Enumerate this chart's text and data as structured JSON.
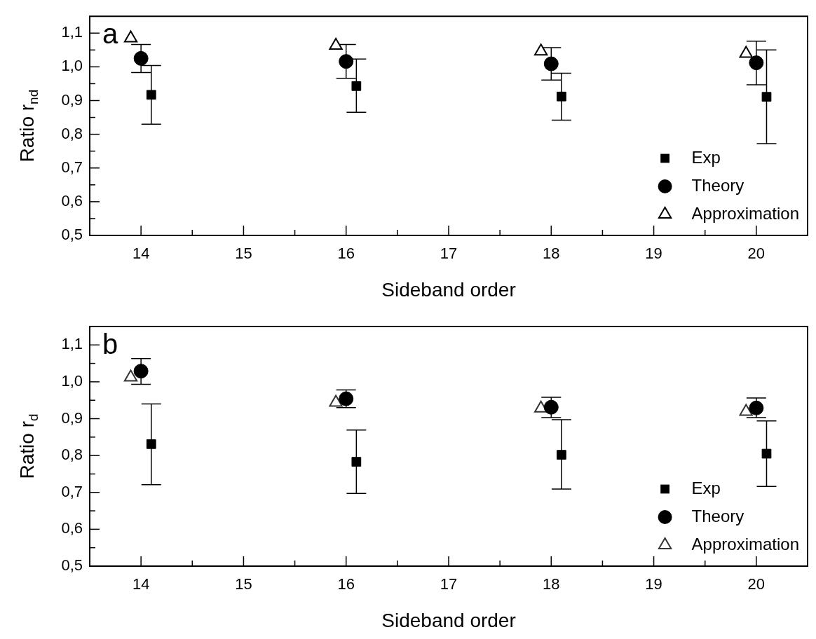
{
  "chart_data": [
    {
      "type": "scatter",
      "xlabel": "Sideband order",
      "ylabel": "Ratio r$_{nd}$",
      "annotations": [
        "a"
      ],
      "xlim": [
        13.5,
        20.5
      ],
      "xticks": [
        14,
        {
          "value": 14.5,
          "label": null
        },
        15,
        {
          "value": 15.5,
          "label": null
        },
        16,
        {
          "value": 16.5,
          "label": null
        },
        17,
        {
          "value": 17.5,
          "label": null
        },
        18,
        {
          "value": 18.5,
          "label": null
        },
        19,
        {
          "value": 19.5,
          "label": null
        },
        20
      ],
      "ylim": [
        0.5,
        1.15
      ],
      "yticks": [
        {
          "value": 0.5,
          "label": "0,5"
        },
        {
          "value": 0.55,
          "label": null
        },
        {
          "value": 0.6,
          "label": "0,6"
        },
        {
          "value": 0.65,
          "label": null
        },
        {
          "value": 0.7,
          "label": "0,7"
        },
        {
          "value": 0.75,
          "label": null
        },
        {
          "value": 0.8,
          "label": "0,8"
        },
        {
          "value": 0.85,
          "label": null
        },
        {
          "value": 0.9,
          "label": "0,9"
        },
        {
          "value": 0.95,
          "label": null
        },
        {
          "value": 1.0,
          "label": "1,0"
        },
        {
          "value": 1.05,
          "label": null
        },
        {
          "value": 1.1,
          "label": "1,1"
        }
      ],
      "legend": "bottom right",
      "grid": false,
      "series": [
        {
          "name": "Exp",
          "color": "#000000",
          "marker": "square",
          "x": [
            14.1,
            16.1,
            18.1,
            20.1
          ],
          "values": [
            0.917,
            0.943,
            0.912,
            0.911
          ],
          "errors": [
            [
              0.83,
              1.004
            ],
            [
              0.865,
              1.023
            ],
            [
              0.842,
              0.981
            ],
            [
              0.772,
              1.05
            ]
          ]
        },
        {
          "name": "Theory",
          "color": "#000000",
          "marker": "circle",
          "x": [
            14,
            16,
            18,
            20
          ],
          "values": [
            1.025,
            1.016,
            1.009,
            1.012
          ],
          "errors": [
            [
              0.983,
              1.066
            ],
            [
              0.966,
              1.066
            ],
            [
              0.961,
              1.057
            ],
            [
              0.947,
              1.076
            ]
          ]
        },
        {
          "name": "Approximation",
          "color": "#000000",
          "marker": "triangle",
          "x": [
            13.9,
            15.9,
            17.9,
            19.9
          ],
          "values": [
            1.085,
            1.063,
            1.046,
            1.039
          ]
        }
      ]
    },
    {
      "type": "scatter",
      "xlabel": "Sideband order",
      "ylabel": "Ratio r$_{d}$",
      "annotations": [
        "b"
      ],
      "xlim": [
        13.5,
        20.5
      ],
      "xticks": [
        14,
        {
          "value": 14.5,
          "label": null
        },
        15,
        {
          "value": 15.5,
          "label": null
        },
        16,
        {
          "value": 16.5,
          "label": null
        },
        17,
        {
          "value": 17.5,
          "label": null
        },
        18,
        {
          "value": 18.5,
          "label": null
        },
        19,
        {
          "value": 19.5,
          "label": null
        },
        20
      ],
      "ylim": [
        0.5,
        1.15
      ],
      "yticks": [
        {
          "value": 0.5,
          "label": "0,5"
        },
        {
          "value": 0.55,
          "label": null
        },
        {
          "value": 0.6,
          "label": "0,6"
        },
        {
          "value": 0.65,
          "label": null
        },
        {
          "value": 0.7,
          "label": "0,7"
        },
        {
          "value": 0.75,
          "label": null
        },
        {
          "value": 0.8,
          "label": "0,8"
        },
        {
          "value": 0.85,
          "label": null
        },
        {
          "value": 0.9,
          "label": "0,9"
        },
        {
          "value": 0.95,
          "label": null
        },
        {
          "value": 1.0,
          "label": "1,0"
        },
        {
          "value": 1.05,
          "label": null
        },
        {
          "value": 1.1,
          "label": "1,1"
        }
      ],
      "legend": "bottom right",
      "grid": false,
      "series": [
        {
          "name": "Exp",
          "color": "#000000",
          "marker": "square",
          "x": [
            14.1,
            16.1,
            18.1,
            20.1
          ],
          "values": [
            0.831,
            0.783,
            0.802,
            0.805
          ],
          "errors": [
            [
              0.721,
              0.94
            ],
            [
              0.697,
              0.869
            ],
            [
              0.709,
              0.897
            ],
            [
              0.716,
              0.894
            ]
          ]
        },
        {
          "name": "Theory",
          "color": "#000000",
          "marker": "circle",
          "x": [
            14,
            16,
            18,
            20
          ],
          "values": [
            1.029,
            0.954,
            0.931,
            0.929
          ],
          "errors": [
            [
              0.993,
              1.063
            ],
            [
              0.93,
              0.978
            ],
            [
              0.903,
              0.958
            ],
            [
              0.903,
              0.956
            ]
          ]
        },
        {
          "name": "Approximation",
          "color": "#333333",
          "marker": "triangle",
          "x": [
            13.9,
            15.9,
            17.9,
            19.9
          ],
          "values": [
            1.012,
            0.944,
            0.928,
            0.919
          ]
        }
      ]
    }
  ]
}
